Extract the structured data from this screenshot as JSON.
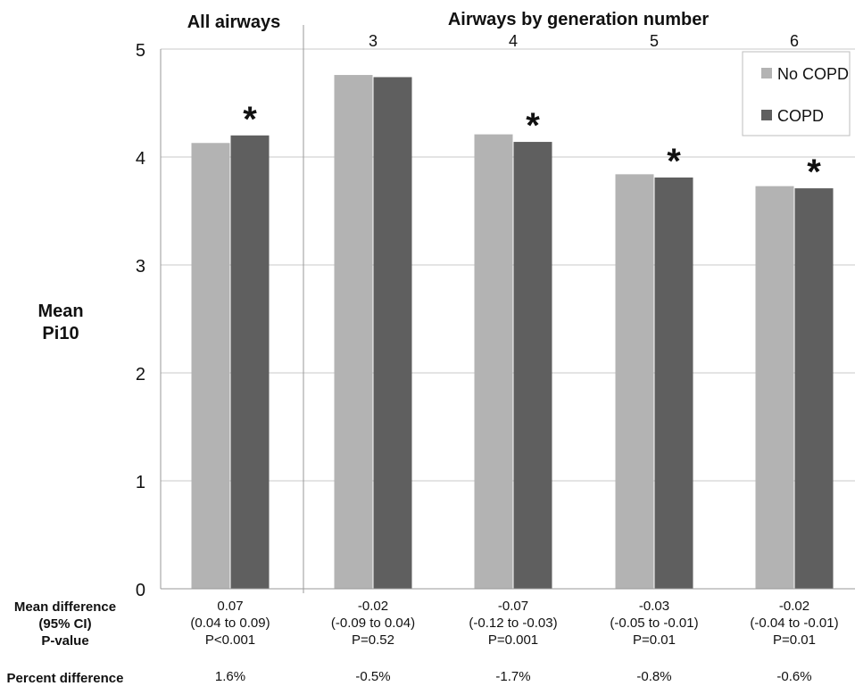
{
  "chart_data": {
    "type": "bar",
    "ylabel": "Mean\nPi10",
    "ylim": [
      0,
      5
    ],
    "yticks": [
      0,
      1,
      2,
      3,
      4,
      5
    ],
    "grid": true,
    "legend_position": "top-right",
    "group_headers": {
      "all": "All airways",
      "generation": "Airways by generation number"
    },
    "categories": [
      "",
      "3",
      "4",
      "5",
      "6"
    ],
    "series": [
      {
        "name": "No COPD",
        "color": "#b3b3b3",
        "values": [
          4.13,
          4.76,
          4.21,
          3.84,
          3.73
        ]
      },
      {
        "name": "COPD",
        "color": "#5f5f5f",
        "values": [
          4.2,
          4.74,
          4.14,
          3.81,
          3.71
        ]
      }
    ],
    "significance_marker": "*",
    "significant": [
      true,
      false,
      true,
      true,
      true
    ],
    "row_labels": {
      "mean_difference": "Mean difference",
      "ci": "(95% CI)",
      "pvalue": "P-value",
      "percent_difference": "Percent difference"
    },
    "stats": [
      {
        "diff": "0.07",
        "ci": "(0.04 to 0.09)",
        "p": "P<0.001",
        "pct": "1.6%"
      },
      {
        "diff": "-0.02",
        "ci": "(-0.09 to 0.04)",
        "p": "P=0.52",
        "pct": "-0.5%"
      },
      {
        "diff": "-0.07",
        "ci": "(-0.12 to -0.03)",
        "p": "P=0.001",
        "pct": "-1.7%"
      },
      {
        "diff": "-0.03",
        "ci": "(-0.05 to -0.01)",
        "p": "P=0.01",
        "pct": "-0.8%"
      },
      {
        "diff": "-0.02",
        "ci": "(-0.04 to -0.01)",
        "p": "P=0.01",
        "pct": "-0.6%"
      }
    ]
  }
}
